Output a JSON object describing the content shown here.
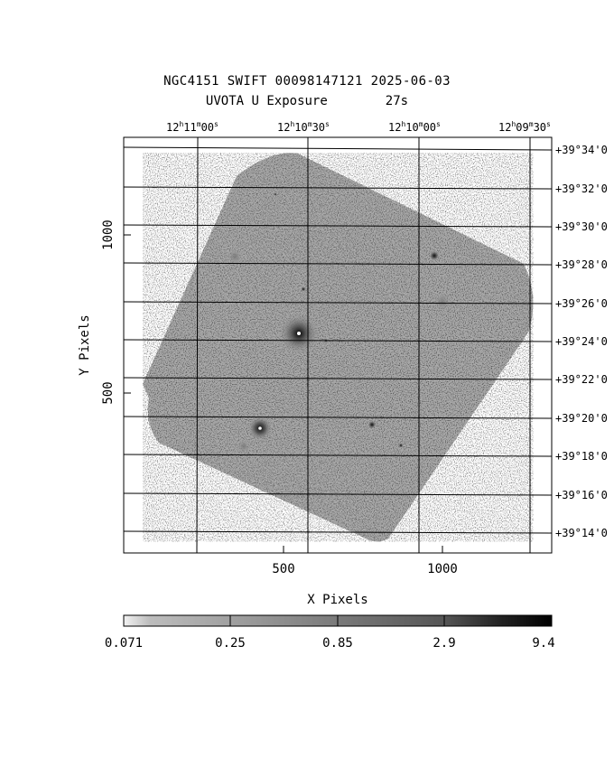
{
  "title": {
    "line1": "NGC4151 SWIFT 00098147121 2025-06-03",
    "line2_label": "UVOTA U Exposure",
    "line2_exposure": "27s"
  },
  "axes": {
    "x_label": "X Pixels",
    "y_label": "Y Pixels",
    "x_ticks": [
      "500",
      "1000"
    ],
    "y_ticks": [
      "500",
      "1000"
    ],
    "ra_ticks": [
      {
        "h": "12",
        "m": "11",
        "s": "00"
      },
      {
        "h": "12",
        "m": "10",
        "s": "30"
      },
      {
        "h": "12",
        "m": "10",
        "s": "00"
      },
      {
        "h": "12",
        "m": "09",
        "s": "30"
      }
    ],
    "dec_ticks": [
      "+39°34'0",
      "+39°32'0",
      "+39°30'0",
      "+39°28'0",
      "+39°26'0",
      "+39°24'0",
      "+39°22'0",
      "+39°20'0",
      "+39°18'0",
      "+39°16'0",
      "+39°14'0"
    ]
  },
  "colorbar": {
    "tick_labels": [
      "0.071",
      "0.25",
      "0.85",
      "2.9",
      "9.4"
    ],
    "colors": [
      "#e6e6e6",
      "#b4b4b4",
      "#888888",
      "#5c5c5c",
      "#2e2e2e",
      "#000000"
    ]
  },
  "image": {
    "background": "#ffffff",
    "field_color": "#a8a8a8",
    "sources": [
      {
        "name": "nucleus-ngc4151",
        "brightness": 1.0
      },
      {
        "name": "bright-star-lower-left",
        "brightness": 0.95
      },
      {
        "name": "star-upper-right",
        "brightness": 0.55
      },
      {
        "name": "diffuse-right",
        "brightness": 0.35
      },
      {
        "name": "diffuse-upper-left",
        "brightness": 0.35
      }
    ]
  }
}
